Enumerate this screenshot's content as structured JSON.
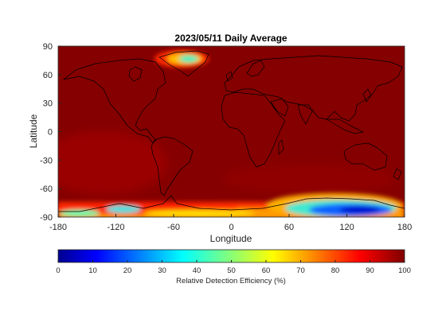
{
  "title": "2023/05/11 Daily Average",
  "xlabel": "Longitude",
  "ylabel": "Latitude",
  "x_ticks": [
    "-180",
    "-120",
    "-60",
    "0",
    "60",
    "120",
    "180"
  ],
  "y_ticks": [
    "90",
    "60",
    "30",
    "0",
    "-30",
    "-60",
    "-90"
  ],
  "colorbar": {
    "label": "Relative Detection Efficiency (%)",
    "ticks": [
      "0",
      "10",
      "20",
      "30",
      "40",
      "50",
      "60",
      "70",
      "80",
      "90",
      "100"
    ],
    "range": [
      0,
      100
    ],
    "colormap": "jet"
  },
  "colors": {
    "background_field": "#850000",
    "coastline": "#000000"
  },
  "chart_data": {
    "type": "heatmap",
    "title": "2023/05/11 Daily Average",
    "xlabel": "Longitude",
    "ylabel": "Latitude",
    "xlim": [
      -180,
      180
    ],
    "ylim": [
      -90,
      90
    ],
    "value_range": [
      0,
      100
    ],
    "colorbar_label": "Relative Detection Efficiency (%)",
    "regions": [
      {
        "area": "most of globe",
        "lon": [
          -180,
          180
        ],
        "lat": [
          -60,
          90
        ],
        "value": 98
      },
      {
        "area": "southern Pacific band",
        "lon": [
          -180,
          -60
        ],
        "lat": [
          -75,
          -35
        ],
        "value": 93
      },
      {
        "area": "Greenland",
        "lon": [
          -55,
          -20
        ],
        "lat": [
          65,
          85
        ],
        "value": 40
      },
      {
        "area": "East Antarctica",
        "lon": [
          70,
          170
        ],
        "lat": [
          -90,
          -65
        ],
        "value": 15
      },
      {
        "area": "West Antarctica",
        "lon": [
          -130,
          -90
        ],
        "lat": [
          -90,
          -72
        ],
        "value": 45
      },
      {
        "area": "Antarctic coast",
        "lon": [
          -180,
          180
        ],
        "lat": [
          -90,
          -72
        ],
        "value": 70
      }
    ]
  }
}
